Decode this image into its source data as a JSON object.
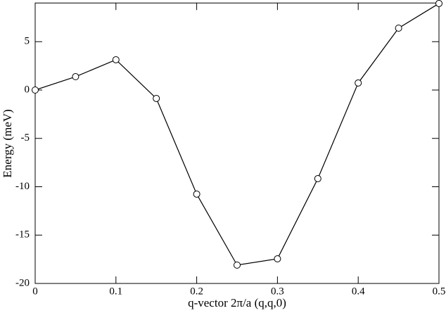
{
  "chart_data": {
    "type": "line",
    "xlabel": "q-vector 2π/a (q,q,0)",
    "ylabel": "Energy (meV)",
    "x": [
      0,
      0.05,
      0.1,
      0.15,
      0.2,
      0.25,
      0.3,
      0.35,
      0.4,
      0.45,
      0.5
    ],
    "series": [
      {
        "name": "Energy",
        "color": "#000000",
        "values": [
          0,
          1.38,
          3.13,
          -0.87,
          -10.76,
          -18.1,
          -17.45,
          -9.16,
          0.73,
          6.4,
          8.95
        ]
      }
    ],
    "xlim": [
      0,
      0.5
    ],
    "xticks": [
      0,
      0.1,
      0.2,
      0.3,
      0.4,
      0.5
    ],
    "ylim": [
      -20,
      9
    ],
    "yticks": [
      -20,
      -15,
      -10,
      -5,
      0,
      5
    ],
    "grid": false,
    "marker": "open-circle"
  }
}
